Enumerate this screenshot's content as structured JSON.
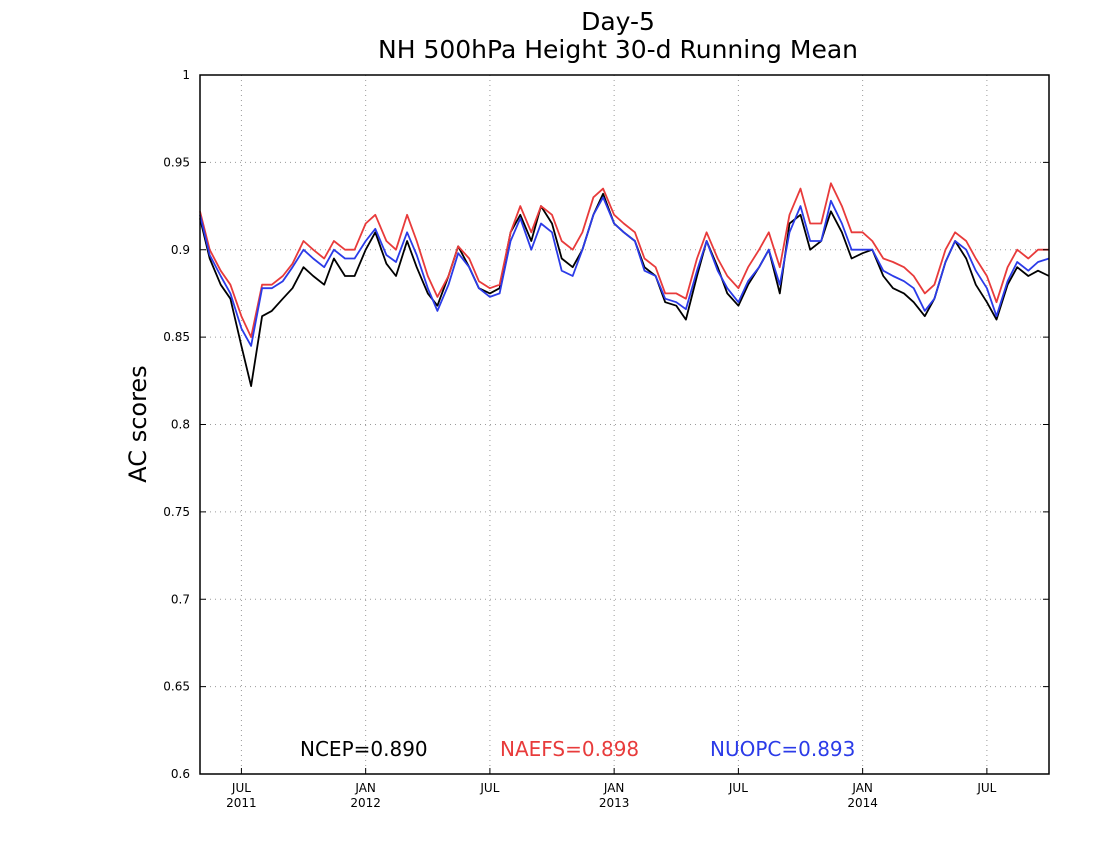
{
  "chart_data": {
    "type": "line",
    "title": "Day-5",
    "subtitle": "NH 500hPa Height 30-d Running Mean",
    "ylabel": "AC scores",
    "xlabel": "",
    "ylim": [
      0.6,
      1.0
    ],
    "yticks": [
      0.6,
      0.65,
      0.7,
      0.75,
      0.8,
      0.85,
      0.9,
      0.95,
      1
    ],
    "ytick_labels": [
      "0.6",
      "0.65",
      "0.7",
      "0.75",
      "0.8",
      "0.85",
      "0.9",
      "0.95",
      "1"
    ],
    "xlim": [
      "2011-05",
      "2014-10"
    ],
    "xticks": [
      {
        "x": "2011-07",
        "label": "JUL",
        "year": "2011"
      },
      {
        "x": "2012-01",
        "label": "JAN",
        "year": "2012"
      },
      {
        "x": "2012-07",
        "label": "JUL",
        "year": ""
      },
      {
        "x": "2013-01",
        "label": "JAN",
        "year": "2013"
      },
      {
        "x": "2013-07",
        "label": "JUL",
        "year": ""
      },
      {
        "x": "2014-01",
        "label": "JAN",
        "year": "2014"
      },
      {
        "x": "2014-07",
        "label": "JUL",
        "year": ""
      }
    ],
    "grid": true,
    "series": [
      {
        "name": "NCEP",
        "legend": "NCEP=0.890",
        "color": "#000000",
        "x": [
          "2011-05",
          "2011-05-15",
          "2011-06",
          "2011-06-15",
          "2011-07",
          "2011-07-15",
          "2011-08",
          "2011-08-15",
          "2011-09",
          "2011-09-15",
          "2011-10",
          "2011-10-15",
          "2011-11",
          "2011-11-15",
          "2011-12",
          "2011-12-15",
          "2012-01",
          "2012-01-15",
          "2012-02",
          "2012-02-15",
          "2012-03",
          "2012-03-15",
          "2012-04",
          "2012-04-15",
          "2012-05",
          "2012-05-15",
          "2012-06",
          "2012-06-15",
          "2012-07",
          "2012-07-15",
          "2012-08",
          "2012-08-15",
          "2012-09",
          "2012-09-15",
          "2012-10",
          "2012-10-15",
          "2012-11",
          "2012-11-15",
          "2012-12",
          "2012-12-15",
          "2013-01",
          "2013-01-15",
          "2013-02",
          "2013-02-15",
          "2013-03",
          "2013-03-15",
          "2013-04",
          "2013-04-15",
          "2013-05",
          "2013-05-15",
          "2013-06",
          "2013-06-15",
          "2013-07",
          "2013-07-15",
          "2013-08",
          "2013-08-15",
          "2013-09",
          "2013-09-15",
          "2013-10",
          "2013-10-15",
          "2013-11",
          "2013-11-15",
          "2013-12",
          "2013-12-15",
          "2014-01",
          "2014-01-15",
          "2014-02",
          "2014-02-15",
          "2014-03",
          "2014-03-15",
          "2014-04",
          "2014-04-15",
          "2014-05",
          "2014-05-15",
          "2014-06",
          "2014-06-15",
          "2014-07",
          "2014-07-15",
          "2014-08",
          "2014-08-15",
          "2014-09",
          "2014-09-15",
          "2014-10"
        ],
        "values": [
          0.918,
          0.895,
          0.88,
          0.872,
          0.845,
          0.822,
          0.862,
          0.865,
          0.872,
          0.878,
          0.89,
          0.885,
          0.88,
          0.895,
          0.885,
          0.885,
          0.9,
          0.91,
          0.892,
          0.885,
          0.905,
          0.89,
          0.875,
          0.868,
          0.885,
          0.902,
          0.89,
          0.878,
          0.875,
          0.878,
          0.91,
          0.92,
          0.905,
          0.925,
          0.915,
          0.895,
          0.89,
          0.9,
          0.92,
          0.932,
          0.915,
          0.91,
          0.905,
          0.89,
          0.885,
          0.87,
          0.868,
          0.86,
          0.885,
          0.905,
          0.89,
          0.875,
          0.868,
          0.88,
          0.89,
          0.9,
          0.875,
          0.915,
          0.92,
          0.9,
          0.905,
          0.922,
          0.91,
          0.895,
          0.898,
          0.9,
          0.885,
          0.878,
          0.875,
          0.87,
          0.862,
          0.872,
          0.893,
          0.905,
          0.895,
          0.88,
          0.87,
          0.86,
          0.88,
          0.89,
          0.885,
          0.888,
          0.885
        ]
      },
      {
        "name": "NAEFS",
        "legend": "NAEFS=0.898",
        "color": "#e83b3b",
        "x": [
          "2011-05",
          "2011-05-15",
          "2011-06",
          "2011-06-15",
          "2011-07",
          "2011-07-15",
          "2011-08",
          "2011-08-15",
          "2011-09",
          "2011-09-15",
          "2011-10",
          "2011-10-15",
          "2011-11",
          "2011-11-15",
          "2011-12",
          "2011-12-15",
          "2012-01",
          "2012-01-15",
          "2012-02",
          "2012-02-15",
          "2012-03",
          "2012-03-15",
          "2012-04",
          "2012-04-15",
          "2012-05",
          "2012-05-15",
          "2012-06",
          "2012-06-15",
          "2012-07",
          "2012-07-15",
          "2012-08",
          "2012-08-15",
          "2012-09",
          "2012-09-15",
          "2012-10",
          "2012-10-15",
          "2012-11",
          "2012-11-15",
          "2012-12",
          "2012-12-15",
          "2013-01",
          "2013-01-15",
          "2013-02",
          "2013-02-15",
          "2013-03",
          "2013-03-15",
          "2013-04",
          "2013-04-15",
          "2013-05",
          "2013-05-15",
          "2013-06",
          "2013-06-15",
          "2013-07",
          "2013-07-15",
          "2013-08",
          "2013-08-15",
          "2013-09",
          "2013-09-15",
          "2013-10",
          "2013-10-15",
          "2013-11",
          "2013-11-15",
          "2013-12",
          "2013-12-15",
          "2014-01",
          "2014-01-15",
          "2014-02",
          "2014-02-15",
          "2014-03",
          "2014-03-15",
          "2014-04",
          "2014-04-15",
          "2014-05",
          "2014-05-15",
          "2014-06",
          "2014-06-15",
          "2014-07",
          "2014-07-15",
          "2014-08",
          "2014-08-15",
          "2014-09",
          "2014-09-15",
          "2014-10"
        ],
        "values": [
          0.922,
          0.9,
          0.888,
          0.88,
          0.862,
          0.85,
          0.88,
          0.88,
          0.885,
          0.892,
          0.905,
          0.9,
          0.895,
          0.905,
          0.9,
          0.9,
          0.915,
          0.92,
          0.905,
          0.9,
          0.92,
          0.905,
          0.885,
          0.873,
          0.885,
          0.902,
          0.895,
          0.882,
          0.878,
          0.88,
          0.91,
          0.925,
          0.91,
          0.925,
          0.92,
          0.905,
          0.9,
          0.91,
          0.93,
          0.935,
          0.92,
          0.915,
          0.91,
          0.895,
          0.89,
          0.875,
          0.875,
          0.872,
          0.895,
          0.91,
          0.895,
          0.885,
          0.878,
          0.89,
          0.9,
          0.91,
          0.89,
          0.92,
          0.935,
          0.915,
          0.915,
          0.938,
          0.925,
          0.91,
          0.91,
          0.905,
          0.895,
          0.893,
          0.89,
          0.885,
          0.875,
          0.88,
          0.9,
          0.91,
          0.905,
          0.895,
          0.885,
          0.87,
          0.89,
          0.9,
          0.895,
          0.9,
          0.9
        ]
      },
      {
        "name": "NUOPC",
        "legend": "NUOPC=0.893",
        "color": "#2b3be8",
        "x": [
          "2011-05",
          "2011-05-15",
          "2011-06",
          "2011-06-15",
          "2011-07",
          "2011-07-15",
          "2011-08",
          "2011-08-15",
          "2011-09",
          "2011-09-15",
          "2011-10",
          "2011-10-15",
          "2011-11",
          "2011-11-15",
          "2011-12",
          "2011-12-15",
          "2012-01",
          "2012-01-15",
          "2012-02",
          "2012-02-15",
          "2012-03",
          "2012-03-15",
          "2012-04",
          "2012-04-15",
          "2012-05",
          "2012-05-15",
          "2012-06",
          "2012-06-15",
          "2012-07",
          "2012-07-15",
          "2012-08",
          "2012-08-15",
          "2012-09",
          "2012-09-15",
          "2012-10",
          "2012-10-15",
          "2012-11",
          "2012-11-15",
          "2012-12",
          "2012-12-15",
          "2013-01",
          "2013-01-15",
          "2013-02",
          "2013-02-15",
          "2013-03",
          "2013-03-15",
          "2013-04",
          "2013-04-15",
          "2013-05",
          "2013-05-15",
          "2013-06",
          "2013-06-15",
          "2013-07",
          "2013-07-15",
          "2013-08",
          "2013-08-15",
          "2013-09",
          "2013-09-15",
          "2013-10",
          "2013-10-15",
          "2013-11",
          "2013-11-15",
          "2013-12",
          "2013-12-15",
          "2014-01",
          "2014-01-15",
          "2014-02",
          "2014-02-15",
          "2014-03",
          "2014-03-15",
          "2014-04",
          "2014-04-15",
          "2014-05",
          "2014-05-15",
          "2014-06",
          "2014-06-15",
          "2014-07",
          "2014-07-15",
          "2014-08",
          "2014-08-15",
          "2014-09",
          "2014-09-15",
          "2014-10"
        ],
        "values": [
          0.92,
          0.897,
          0.885,
          0.875,
          0.855,
          0.845,
          0.878,
          0.878,
          0.882,
          0.89,
          0.9,
          0.895,
          0.89,
          0.9,
          0.895,
          0.895,
          0.905,
          0.912,
          0.897,
          0.893,
          0.91,
          0.897,
          0.878,
          0.865,
          0.88,
          0.898,
          0.89,
          0.878,
          0.873,
          0.875,
          0.905,
          0.918,
          0.9,
          0.915,
          0.91,
          0.888,
          0.885,
          0.9,
          0.92,
          0.93,
          0.915,
          0.91,
          0.905,
          0.888,
          0.885,
          0.872,
          0.87,
          0.866,
          0.888,
          0.905,
          0.888,
          0.878,
          0.87,
          0.882,
          0.89,
          0.9,
          0.88,
          0.91,
          0.925,
          0.905,
          0.905,
          0.928,
          0.915,
          0.9,
          0.9,
          0.9,
          0.888,
          0.885,
          0.882,
          0.878,
          0.865,
          0.872,
          0.893,
          0.905,
          0.9,
          0.888,
          0.878,
          0.862,
          0.882,
          0.893,
          0.888,
          0.893,
          0.895
        ]
      }
    ]
  }
}
